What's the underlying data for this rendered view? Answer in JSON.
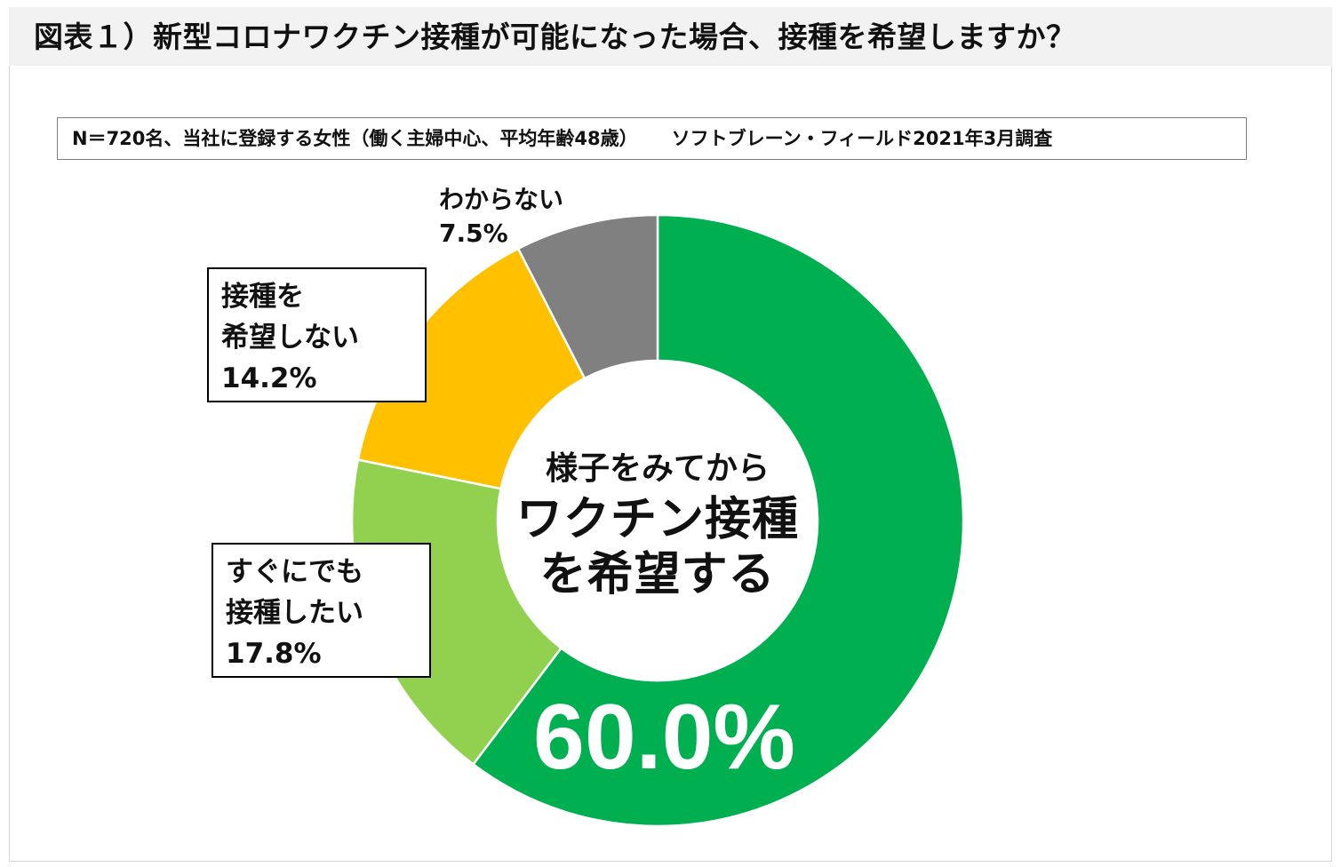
{
  "title": "図表１）新型コロナワクチン接種が可能になった場合、接種を希望しますか？",
  "note": {
    "sample": "N＝720名、当社に登録する女性（働く主婦中心、平均年齢48歳）",
    "source": "ソフトブレーン・フィールド2021年3月調査"
  },
  "chart_data": {
    "type": "pie",
    "style": "donut",
    "start_angle_deg": 0,
    "direction": "clockwise",
    "slices": [
      {
        "key": "wait_and_see",
        "label_lines": [
          "様子をみてから",
          "ワクチン接種",
          "を希望する"
        ],
        "percent_label": "60.0%",
        "value": 60.0,
        "color": "#00B050"
      },
      {
        "key": "immediately",
        "label_lines": [
          "すぐにでも",
          "接種したい"
        ],
        "percent_label": "17.8%",
        "value": 17.8,
        "color": "#92D050"
      },
      {
        "key": "do_not_want",
        "label_lines": [
          "接種を",
          "希望しない"
        ],
        "percent_label": "14.2%",
        "value": 14.2,
        "color": "#FFC000"
      },
      {
        "key": "dont_know",
        "label_lines": [
          "わからない"
        ],
        "percent_label": "7.5%",
        "value": 7.5,
        "color": "#808080"
      }
    ]
  }
}
